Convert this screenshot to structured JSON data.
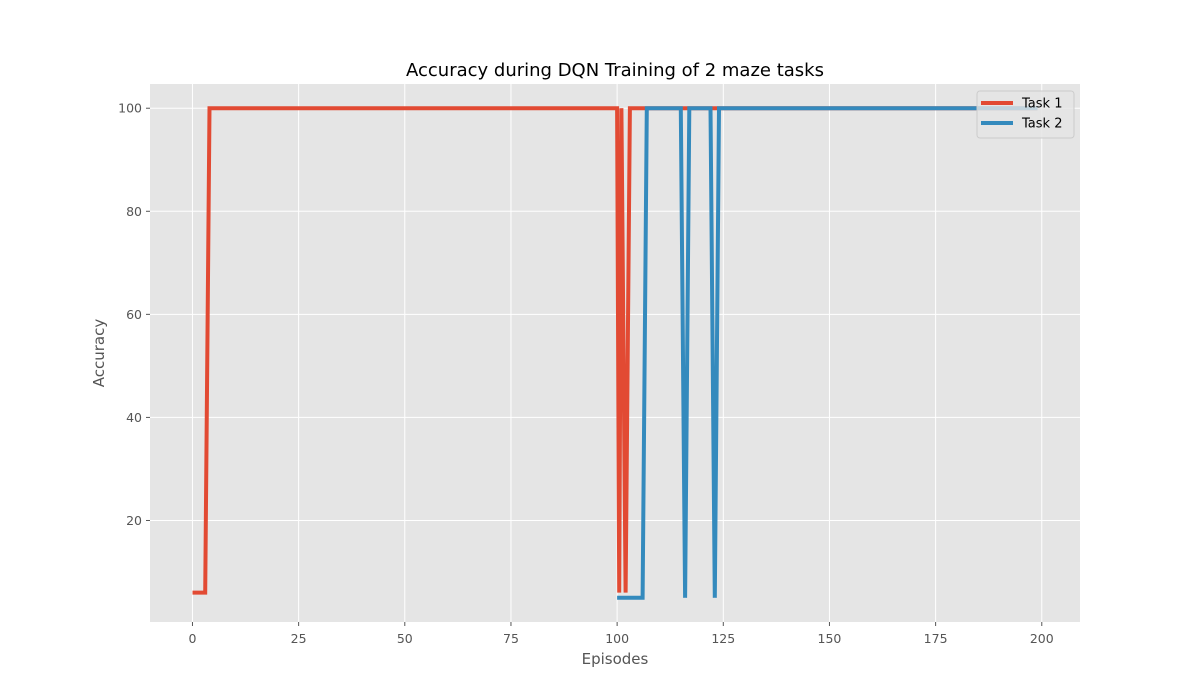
{
  "chart_data": {
    "type": "line",
    "title": "Accuracy during DQN Training of 2 maze tasks",
    "xlabel": "Episodes",
    "ylabel": "Accuracy",
    "xlim": [
      -10,
      209
    ],
    "ylim": [
      0.3,
      104.7
    ],
    "xticks": [
      0,
      25,
      50,
      75,
      100,
      125,
      150,
      175,
      200
    ],
    "yticks": [
      20,
      40,
      60,
      80,
      100
    ],
    "grid": true,
    "legend_position": "top-right",
    "series": [
      {
        "name": "Task 1",
        "color": "#E24A33",
        "points": [
          [
            0,
            6
          ],
          [
            3,
            6
          ],
          [
            4,
            100
          ],
          [
            100,
            100
          ],
          [
            100.5,
            6
          ],
          [
            101,
            100
          ],
          [
            102,
            6
          ],
          [
            103,
            100
          ],
          [
            199,
            100
          ]
        ]
      },
      {
        "name": "Task 2",
        "color": "#348ABD",
        "points": [
          [
            100,
            5
          ],
          [
            106,
            5
          ],
          [
            107,
            100
          ],
          [
            115,
            100
          ],
          [
            116,
            5
          ],
          [
            117,
            100
          ],
          [
            122,
            100
          ],
          [
            123,
            5
          ],
          [
            124,
            100
          ],
          [
            199,
            100
          ]
        ]
      }
    ]
  }
}
